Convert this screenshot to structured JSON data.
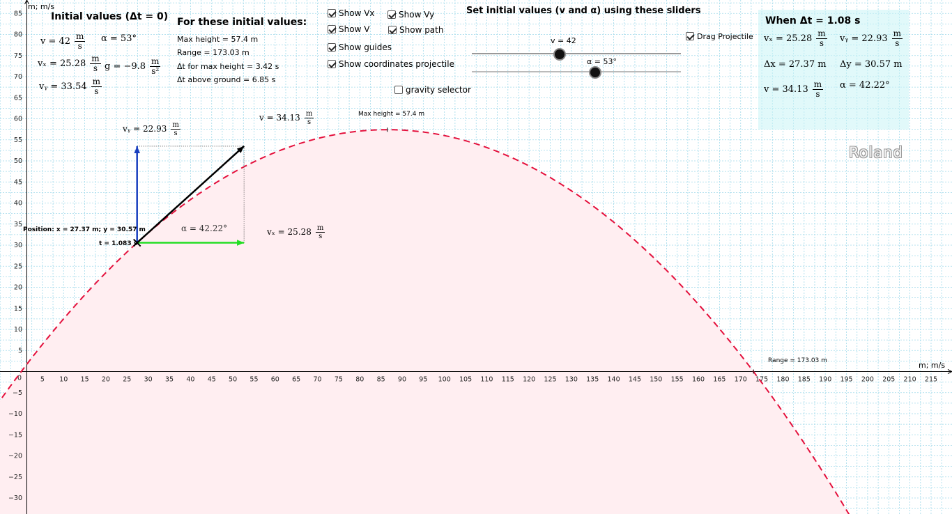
{
  "axes": {
    "x_label": "m; m/s",
    "y_label": "m; m/s",
    "x_ticks": [
      "5",
      "10",
      "15",
      "20",
      "25",
      "30",
      "35",
      "40",
      "45",
      "50",
      "55",
      "60",
      "65",
      "70",
      "75",
      "80",
      "85",
      "90",
      "95",
      "100",
      "105",
      "110",
      "115",
      "120",
      "125",
      "130",
      "135",
      "140",
      "145",
      "150",
      "155",
      "160",
      "165",
      "170",
      "175",
      "180",
      "185",
      "190",
      "195",
      "200",
      "205",
      "210",
      "215"
    ],
    "y_ticks": [
      "85",
      "80",
      "75",
      "70",
      "65",
      "60",
      "55",
      "50",
      "45",
      "40",
      "35",
      "30",
      "25",
      "20",
      "15",
      "10",
      "5",
      "−5",
      "−10",
      "−15",
      "−20",
      "−25",
      "−30"
    ],
    "origin_label": "0"
  },
  "initial": {
    "title": "Initial values (Δt = 0)",
    "v": "v = 42",
    "alpha": "α = 53°",
    "vx": "vₓ = 25.28",
    "vy": "vᵧ = 33.54",
    "g": "g = −9.8",
    "unit_num": "m",
    "unit_den": "s",
    "g_unit_den": "s²"
  },
  "results": {
    "title": "For these initial values:",
    "max_height": "Max height = 57.4 m",
    "range": "Range = 173.03 m",
    "t_max": "Δt for max height = 3.42 s",
    "t_ground": "Δt above ground = 6.85 s"
  },
  "checkboxes": {
    "show_vx": {
      "label": "Show Vx",
      "checked": true
    },
    "show_vy": {
      "label": "Show Vy",
      "checked": true
    },
    "show_v": {
      "label": "Show V",
      "checked": true
    },
    "show_path": {
      "label": "Show path",
      "checked": true
    },
    "show_guides": {
      "label": "Show guides",
      "checked": true
    },
    "show_coords": {
      "label": "Show coordinates projectile",
      "checked": true
    },
    "gravity_selector": {
      "label": "gravity selector",
      "checked": false
    },
    "drag_projectile": {
      "label": "Drag Projectile",
      "checked": true
    }
  },
  "sliders": {
    "title": "Set initial values (v and α) using these sliders",
    "v_label": "v = 42",
    "v_fraction": 0.42,
    "alpha_label": "α = 53°",
    "alpha_fraction": 0.59
  },
  "panel": {
    "title": "When Δt = 1.08 s",
    "vx": "vₓ = 25.28",
    "vy": "vᵧ = 22.93",
    "dx": "Δx = 27.37 m",
    "dy": "Δy = 30.57 m",
    "v": "v = 34.13",
    "alpha": "α = 42.22°",
    "unit_num": "m",
    "unit_den": "s"
  },
  "graph": {
    "vy_label": "vᵧ = 22.93",
    "v_label": "v = 34.13",
    "vx_label": "vₓ = 25.28",
    "alpha_label": "α = 42.22°",
    "position": "Position: x = 27.37 m;   y = 30.57 m",
    "time": "t = 1.083 s",
    "max_height_label": "Max height = 57.4 m",
    "range_label": "Range = 173.03 m",
    "unit_num": "m",
    "unit_den": "s"
  },
  "watermark": "Roland",
  "colors": {
    "grid": "#9fd9ea",
    "path": "#e4103c",
    "fill": "#ffeef1",
    "vx_arrow": "#22dd22",
    "vy_arrow": "#1a3fbf",
    "v_arrow": "#000000",
    "panel_bg": "#c8f4f6"
  }
}
